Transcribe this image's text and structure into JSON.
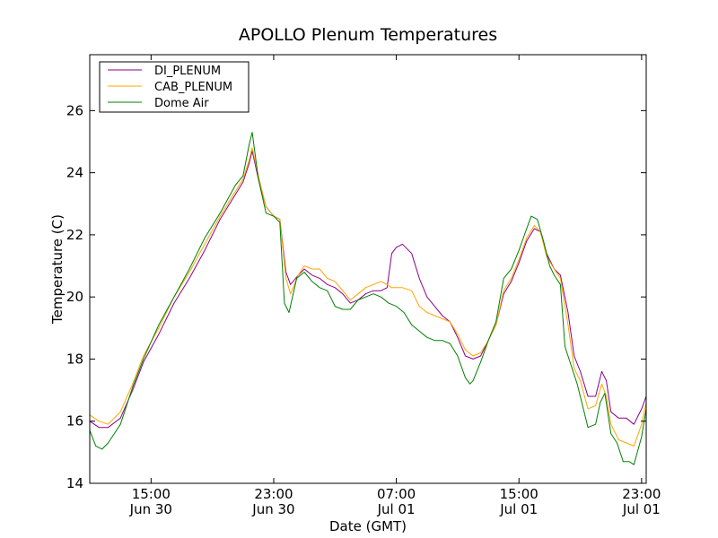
{
  "chart_data": {
    "type": "line",
    "title": "APOLLO Plenum Temperatures",
    "xlabel": "Date (GMT)",
    "ylabel": "Temperature (C)",
    "x_unit": "hours since Jun 30 11:00 GMT",
    "xlim": [
      0,
      36.3
    ],
    "ylim": [
      14,
      27.8
    ],
    "grid": false,
    "legend_position": "upper-left",
    "y_ticks": [
      14,
      16,
      18,
      20,
      22,
      24,
      26
    ],
    "x_ticks": [
      {
        "value": 4,
        "time": "15:00",
        "date": "Jun 30"
      },
      {
        "value": 12,
        "time": "23:00",
        "date": "Jun 30"
      },
      {
        "value": 20,
        "time": "07:00",
        "date": "Jul 01"
      },
      {
        "value": 28,
        "time": "15:00",
        "date": "Jul 01"
      },
      {
        "value": 36,
        "time": "23:00",
        "date": "Jul 01"
      }
    ],
    "series": [
      {
        "name": "DI_PLENUM",
        "color": "#8b008b",
        "points": [
          [
            0,
            16.0
          ],
          [
            0.6,
            15.8
          ],
          [
            1.2,
            15.8
          ],
          [
            2.0,
            16.1
          ],
          [
            2.8,
            17.0
          ],
          [
            3.5,
            17.9
          ],
          [
            4.5,
            18.8
          ],
          [
            5.5,
            19.8
          ],
          [
            6.5,
            20.6
          ],
          [
            7.5,
            21.5
          ],
          [
            8.5,
            22.5
          ],
          [
            9.5,
            23.3
          ],
          [
            10.0,
            23.7
          ],
          [
            10.4,
            24.3
          ],
          [
            10.6,
            24.7
          ],
          [
            11.0,
            23.8
          ],
          [
            11.5,
            22.9
          ],
          [
            12.0,
            22.6
          ],
          [
            12.4,
            22.5
          ],
          [
            12.8,
            20.8
          ],
          [
            13.1,
            20.4
          ],
          [
            13.6,
            20.7
          ],
          [
            14.0,
            20.9
          ],
          [
            14.5,
            20.7
          ],
          [
            15.0,
            20.6
          ],
          [
            15.5,
            20.4
          ],
          [
            16.0,
            20.3
          ],
          [
            16.5,
            20.1
          ],
          [
            17.0,
            19.8
          ],
          [
            17.5,
            19.9
          ],
          [
            18.0,
            20.1
          ],
          [
            18.5,
            20.2
          ],
          [
            19.0,
            20.2
          ],
          [
            19.4,
            20.3
          ],
          [
            19.7,
            21.4
          ],
          [
            20.0,
            21.6
          ],
          [
            20.4,
            21.7
          ],
          [
            21.0,
            21.4
          ],
          [
            21.5,
            20.6
          ],
          [
            22.0,
            20.0
          ],
          [
            22.5,
            19.7
          ],
          [
            23.0,
            19.4
          ],
          [
            23.5,
            19.2
          ],
          [
            24.0,
            18.7
          ],
          [
            24.5,
            18.1
          ],
          [
            25.0,
            18.0
          ],
          [
            25.5,
            18.1
          ],
          [
            26.0,
            18.6
          ],
          [
            26.5,
            19.1
          ],
          [
            27.0,
            20.1
          ],
          [
            27.5,
            20.5
          ],
          [
            28.0,
            21.1
          ],
          [
            28.5,
            21.8
          ],
          [
            29.0,
            22.2
          ],
          [
            29.4,
            22.1
          ],
          [
            29.8,
            21.4
          ],
          [
            30.3,
            20.9
          ],
          [
            30.7,
            20.7
          ],
          [
            31.2,
            19.5
          ],
          [
            31.6,
            18.1
          ],
          [
            32.0,
            17.6
          ],
          [
            32.5,
            16.8
          ],
          [
            33.0,
            16.8
          ],
          [
            33.4,
            17.6
          ],
          [
            33.7,
            17.3
          ],
          [
            34.0,
            16.3
          ],
          [
            34.5,
            16.1
          ],
          [
            35.0,
            16.1
          ],
          [
            35.5,
            15.9
          ],
          [
            36.0,
            16.4
          ],
          [
            36.3,
            16.8
          ]
        ]
      },
      {
        "name": "CAB_PLENUM",
        "color": "#ffa500",
        "points": [
          [
            0,
            16.2
          ],
          [
            0.6,
            16.0
          ],
          [
            1.2,
            15.9
          ],
          [
            2.0,
            16.3
          ],
          [
            2.8,
            17.2
          ],
          [
            3.5,
            18.1
          ],
          [
            4.5,
            19.0
          ],
          [
            5.5,
            20.0
          ],
          [
            6.5,
            20.8
          ],
          [
            7.5,
            21.7
          ],
          [
            8.5,
            22.6
          ],
          [
            9.5,
            23.4
          ],
          [
            10.0,
            23.8
          ],
          [
            10.4,
            24.4
          ],
          [
            10.6,
            24.8
          ],
          [
            11.0,
            23.9
          ],
          [
            11.5,
            22.9
          ],
          [
            12.0,
            22.6
          ],
          [
            12.4,
            22.5
          ],
          [
            12.8,
            20.6
          ],
          [
            13.1,
            20.1
          ],
          [
            13.6,
            20.7
          ],
          [
            14.0,
            21.0
          ],
          [
            14.5,
            20.9
          ],
          [
            15.0,
            20.9
          ],
          [
            15.5,
            20.6
          ],
          [
            16.0,
            20.5
          ],
          [
            16.5,
            20.2
          ],
          [
            17.0,
            19.9
          ],
          [
            17.5,
            20.1
          ],
          [
            18.0,
            20.3
          ],
          [
            18.5,
            20.4
          ],
          [
            19.0,
            20.5
          ],
          [
            19.4,
            20.4
          ],
          [
            19.7,
            20.3
          ],
          [
            20.0,
            20.3
          ],
          [
            20.4,
            20.3
          ],
          [
            21.0,
            20.2
          ],
          [
            21.5,
            19.7
          ],
          [
            22.0,
            19.5
          ],
          [
            22.5,
            19.4
          ],
          [
            23.0,
            19.3
          ],
          [
            23.5,
            19.2
          ],
          [
            24.0,
            18.8
          ],
          [
            24.5,
            18.3
          ],
          [
            25.0,
            18.1
          ],
          [
            25.5,
            18.2
          ],
          [
            26.0,
            18.6
          ],
          [
            26.5,
            19.1
          ],
          [
            27.0,
            20.2
          ],
          [
            27.5,
            20.6
          ],
          [
            28.0,
            21.2
          ],
          [
            28.5,
            21.9
          ],
          [
            29.0,
            22.3
          ],
          [
            29.4,
            22.1
          ],
          [
            29.8,
            21.3
          ],
          [
            30.3,
            20.9
          ],
          [
            30.7,
            20.6
          ],
          [
            31.2,
            19.1
          ],
          [
            31.6,
            17.7
          ],
          [
            32.0,
            17.3
          ],
          [
            32.5,
            16.4
          ],
          [
            33.0,
            16.5
          ],
          [
            33.4,
            17.2
          ],
          [
            33.7,
            16.8
          ],
          [
            34.0,
            15.9
          ],
          [
            34.5,
            15.4
          ],
          [
            35.0,
            15.3
          ],
          [
            35.5,
            15.2
          ],
          [
            36.0,
            15.9
          ],
          [
            36.3,
            16.6
          ]
        ]
      },
      {
        "name": "Dome Air",
        "color": "#008000",
        "points": [
          [
            0,
            15.7
          ],
          [
            0.4,
            15.2
          ],
          [
            0.8,
            15.1
          ],
          [
            1.2,
            15.3
          ],
          [
            2.0,
            15.9
          ],
          [
            2.8,
            17.1
          ],
          [
            3.5,
            18.0
          ],
          [
            4.5,
            19.1
          ],
          [
            5.5,
            20.0
          ],
          [
            6.5,
            20.9
          ],
          [
            7.5,
            21.9
          ],
          [
            8.5,
            22.7
          ],
          [
            9.5,
            23.6
          ],
          [
            10.0,
            23.9
          ],
          [
            10.4,
            24.9
          ],
          [
            10.6,
            25.3
          ],
          [
            11.0,
            23.8
          ],
          [
            11.5,
            22.7
          ],
          [
            12.0,
            22.6
          ],
          [
            12.4,
            22.4
          ],
          [
            12.7,
            19.8
          ],
          [
            13.0,
            19.5
          ],
          [
            13.5,
            20.6
          ],
          [
            14.0,
            20.8
          ],
          [
            14.5,
            20.5
          ],
          [
            15.0,
            20.3
          ],
          [
            15.5,
            20.2
          ],
          [
            16.0,
            19.7
          ],
          [
            16.5,
            19.6
          ],
          [
            17.0,
            19.6
          ],
          [
            17.5,
            19.9
          ],
          [
            18.0,
            20.0
          ],
          [
            18.5,
            20.1
          ],
          [
            19.0,
            20.0
          ],
          [
            19.5,
            19.8
          ],
          [
            20.0,
            19.7
          ],
          [
            20.5,
            19.5
          ],
          [
            21.0,
            19.1
          ],
          [
            21.5,
            18.9
          ],
          [
            22.0,
            18.7
          ],
          [
            22.5,
            18.6
          ],
          [
            23.0,
            18.6
          ],
          [
            23.5,
            18.5
          ],
          [
            24.0,
            18.1
          ],
          [
            24.5,
            17.4
          ],
          [
            24.8,
            17.2
          ],
          [
            25.0,
            17.3
          ],
          [
            25.5,
            17.9
          ],
          [
            26.0,
            18.6
          ],
          [
            26.5,
            19.2
          ],
          [
            27.0,
            20.6
          ],
          [
            27.5,
            20.9
          ],
          [
            28.0,
            21.5
          ],
          [
            28.5,
            22.2
          ],
          [
            28.8,
            22.6
          ],
          [
            29.2,
            22.5
          ],
          [
            29.6,
            21.8
          ],
          [
            30.0,
            21.0
          ],
          [
            30.3,
            20.7
          ],
          [
            30.7,
            20.4
          ],
          [
            31.0,
            18.4
          ],
          [
            31.4,
            17.8
          ],
          [
            31.8,
            17.2
          ],
          [
            32.2,
            16.4
          ],
          [
            32.5,
            15.8
          ],
          [
            33.0,
            15.9
          ],
          [
            33.3,
            16.6
          ],
          [
            33.6,
            16.9
          ],
          [
            34.0,
            15.6
          ],
          [
            34.4,
            15.3
          ],
          [
            34.8,
            14.7
          ],
          [
            35.2,
            14.7
          ],
          [
            35.5,
            14.6
          ],
          [
            36.0,
            15.5
          ],
          [
            36.3,
            16.4
          ]
        ]
      }
    ]
  }
}
